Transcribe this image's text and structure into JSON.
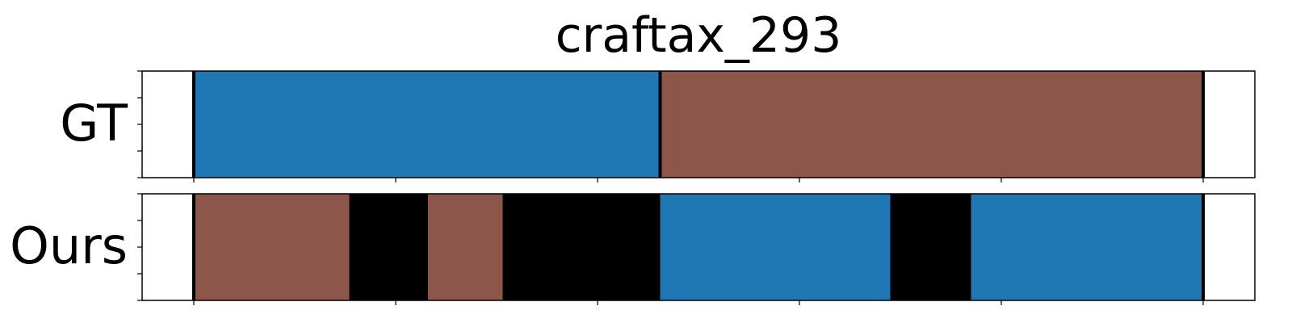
{
  "chart_data": {
    "type": "bar",
    "title": "craftax_293",
    "xlim": [
      -0.25,
      5.0
    ],
    "grid": false,
    "colors": {
      "brown": "#8c564b",
      "blue": "#1f77b4",
      "black": "#000000"
    },
    "rows": [
      {
        "name": "GT",
        "segments": [
          {
            "start": 0.0,
            "end": 2.31,
            "color": "#1f77b4"
          },
          {
            "start": 2.31,
            "end": 5.0,
            "color": "#8c564b"
          }
        ],
        "boundaries": [
          0.0,
          2.31,
          5.0
        ]
      },
      {
        "name": "Ours",
        "segments": [
          {
            "start": 0.0,
            "end": 0.77,
            "color": "#8c564b"
          },
          {
            "start": 0.77,
            "end": 1.16,
            "color": "#000000"
          },
          {
            "start": 1.16,
            "end": 1.53,
            "color": "#8c564b"
          },
          {
            "start": 1.53,
            "end": 2.31,
            "color": "#000000"
          },
          {
            "start": 2.31,
            "end": 3.45,
            "color": "#1f77b4"
          },
          {
            "start": 3.45,
            "end": 3.85,
            "color": "#000000"
          },
          {
            "start": 3.85,
            "end": 5.0,
            "color": "#1f77b4"
          }
        ],
        "boundaries": [
          0.0,
          5.0
        ]
      }
    ]
  }
}
